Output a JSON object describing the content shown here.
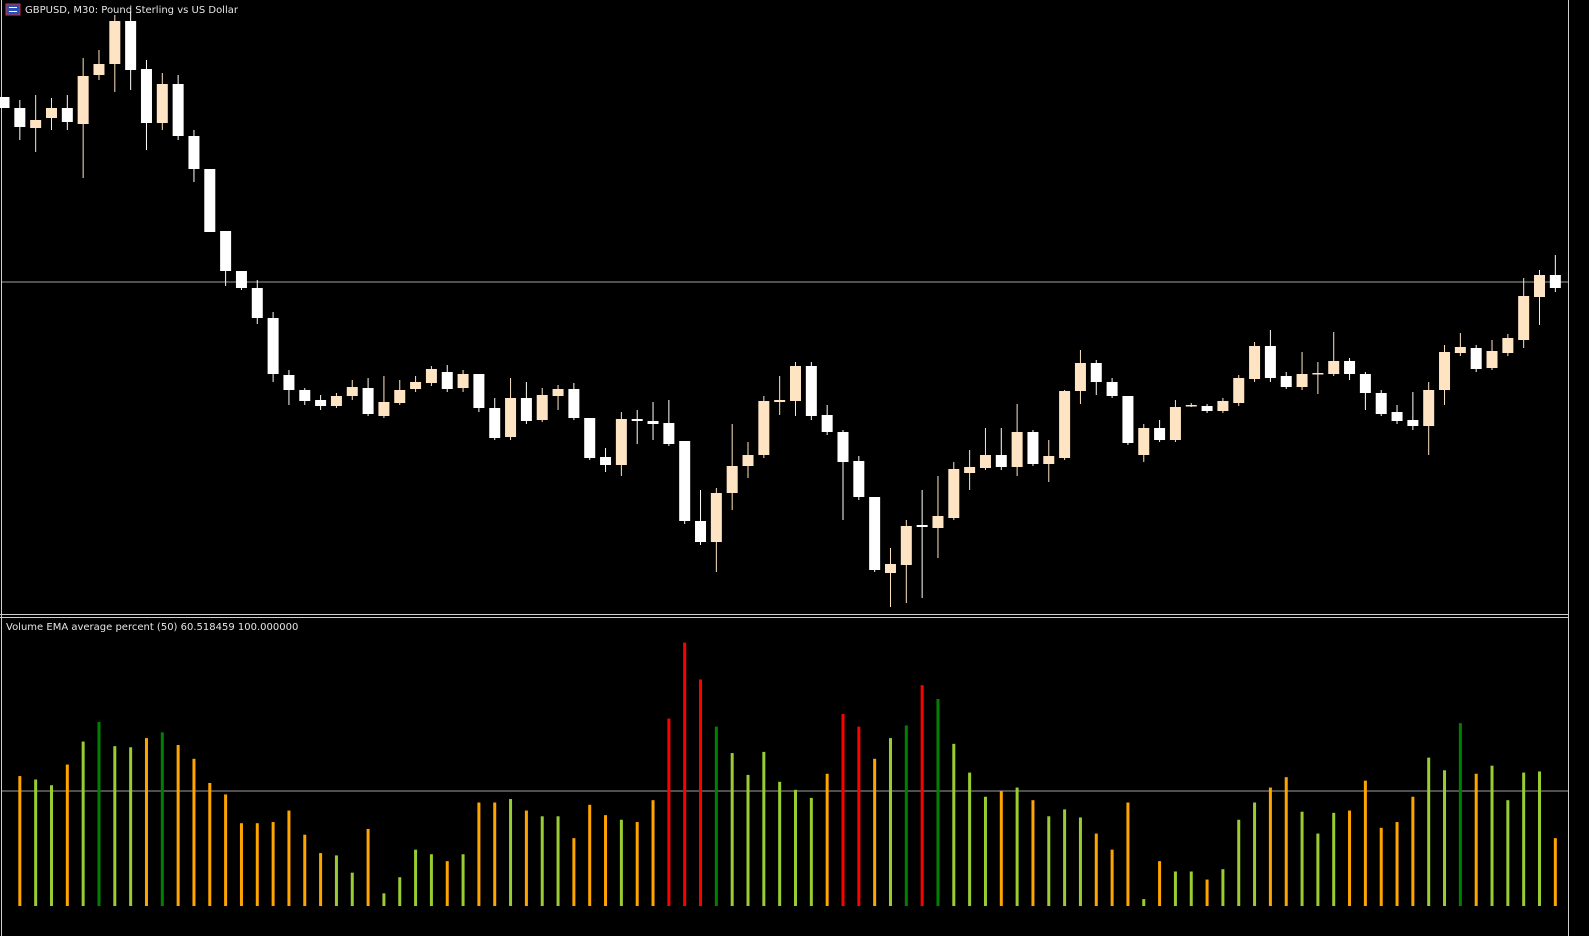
{
  "chart_data": [
    {
      "type": "candlestick",
      "title": "GBPUSD, M30:  Pound Sterling vs US Dollar",
      "up_color": "#ffe4c4",
      "down_color": "#ffffff",
      "ylim": [
        0,
        615
      ],
      "level": 333,
      "open": [
        518,
        507,
        487,
        497,
        507,
        491,
        540,
        551,
        594,
        546,
        492,
        531,
        479,
        446,
        384,
        344,
        327,
        297,
        240,
        225,
        215,
        209,
        219,
        227,
        199,
        212,
        226,
        232,
        243,
        227,
        241,
        207,
        178,
        217,
        195,
        219,
        226,
        197,
        158,
        150,
        196,
        194,
        192,
        174,
        94,
        73,
        122,
        149,
        160,
        213,
        214,
        249,
        200,
        183,
        154,
        118,
        42,
        50,
        90,
        87,
        97,
        142,
        147,
        160,
        148,
        183,
        151,
        157,
        224,
        252,
        233,
        219,
        160,
        187,
        175,
        210,
        209,
        204,
        212,
        236,
        269,
        239,
        228,
        241,
        241,
        254,
        241,
        222,
        203,
        195,
        189,
        225,
        262,
        267,
        247,
        262,
        275,
        318,
        340
      ],
      "high": [
        518,
        515,
        520,
        517,
        520,
        557,
        565,
        600,
        603,
        555,
        542,
        540,
        485,
        446,
        384,
        344,
        335,
        303,
        245,
        227,
        220,
        222,
        235,
        237,
        239,
        235,
        239,
        249,
        250,
        245,
        241,
        217,
        237,
        233,
        227,
        230,
        232,
        197,
        167,
        203,
        205,
        213,
        215,
        174,
        125,
        127,
        191,
        173,
        219,
        239,
        253,
        253,
        210,
        185,
        159,
        118,
        67,
        95,
        125,
        139,
        153,
        165,
        187,
        187,
        211,
        185,
        175,
        225,
        265,
        255,
        237,
        219,
        191,
        195,
        215,
        212,
        211,
        217,
        240,
        273,
        285,
        243,
        263,
        253,
        283,
        257,
        243,
        225,
        210,
        223,
        233,
        270,
        282,
        270,
        275,
        281,
        337,
        345,
        360
      ],
      "low": [
        507,
        475,
        463,
        485,
        485,
        437,
        535,
        523,
        525,
        465,
        485,
        475,
        433,
        383,
        329,
        325,
        291,
        233,
        210,
        210,
        205,
        207,
        215,
        199,
        197,
        210,
        223,
        229,
        223,
        223,
        203,
        175,
        175,
        191,
        193,
        205,
        195,
        155,
        143,
        139,
        171,
        175,
        169,
        91,
        70,
        43,
        105,
        137,
        157,
        200,
        199,
        195,
        180,
        95,
        115,
        43,
        8,
        12,
        17,
        57,
        95,
        125,
        145,
        145,
        139,
        149,
        133,
        155,
        211,
        220,
        217,
        170,
        153,
        173,
        173,
        208,
        202,
        202,
        209,
        233,
        233,
        226,
        225,
        221,
        239,
        235,
        205,
        199,
        191,
        185,
        160,
        210,
        259,
        243,
        245,
        259,
        267,
        290,
        323
      ],
      "close": [
        507,
        488,
        495,
        507,
        493,
        539,
        551,
        594,
        545,
        492,
        531,
        479,
        446,
        383,
        344,
        327,
        297,
        241,
        225,
        214,
        209,
        219,
        228,
        201,
        213,
        225,
        233,
        246,
        226,
        241,
        207,
        177,
        217,
        194,
        220,
        226,
        197,
        157,
        150,
        196,
        194,
        191,
        171,
        94,
        73,
        122,
        149,
        160,
        214,
        215,
        249,
        199,
        183,
        153,
        118,
        45,
        51,
        89,
        88,
        99,
        146,
        148,
        160,
        148,
        183,
        151,
        159,
        224,
        252,
        233,
        219,
        172,
        187,
        175,
        208,
        210,
        204,
        214,
        237,
        269,
        237,
        228,
        241,
        242,
        254,
        241,
        222,
        201,
        194,
        189,
        225,
        263,
        268,
        246,
        264,
        277,
        319,
        340,
        327
      ]
    },
    {
      "type": "bar",
      "title": "Volume EMA average percent (50) 60.518459 100.000000",
      "ylim": [
        0,
        250
      ],
      "level": 100,
      "values": [
        null,
        113,
        110,
        105,
        123,
        143,
        160,
        139,
        138,
        146,
        151,
        140,
        128,
        107,
        97,
        72,
        72,
        73,
        83,
        62,
        46,
        44,
        29,
        67,
        11,
        25,
        49,
        45,
        39,
        45,
        90,
        90,
        93,
        83,
        78,
        78,
        59,
        88,
        79,
        75,
        73,
        92,
        163,
        229,
        197,
        156,
        133,
        114,
        134,
        108,
        101,
        94,
        115,
        167,
        156,
        128,
        146,
        157,
        192,
        180,
        141,
        116,
        95,
        100,
        103,
        92,
        78,
        84,
        77,
        63,
        49,
        90,
        6,
        39,
        30,
        30,
        23,
        32,
        75,
        90,
        103,
        112,
        82,
        63,
        81,
        83,
        109,
        68,
        73,
        95,
        129,
        118,
        159,
        115,
        122,
        92,
        116,
        117,
        59
      ],
      "colors": [
        null,
        "#ffa500",
        "#9acd32",
        "#9acd32",
        "#ffa500",
        "#9acd32",
        "#008000",
        "#9acd32",
        "#9acd32",
        "#ffa500",
        "#008000",
        "#ffa500",
        "#ffa500",
        "#ffa500",
        "#ffa500",
        "#ffa500",
        "#ffa500",
        "#ffa500",
        "#ffa500",
        "#ffa500",
        "#ffa500",
        "#9acd32",
        "#9acd32",
        "#ffa500",
        "#9acd32",
        "#9acd32",
        "#9acd32",
        "#9acd32",
        "#ffa500",
        "#9acd32",
        "#ffa500",
        "#ffa500",
        "#9acd32",
        "#ffa500",
        "#9acd32",
        "#9acd32",
        "#ffa500",
        "#ffa500",
        "#ffa500",
        "#9acd32",
        "#ffa500",
        "#ffa500",
        "#ff0000",
        "#ff0000",
        "#ff0000",
        "#008000",
        "#9acd32",
        "#9acd32",
        "#9acd32",
        "#9acd32",
        "#9acd32",
        "#9acd32",
        "#ffa500",
        "#ff0000",
        "#ff0000",
        "#ffa500",
        "#9acd32",
        "#008000",
        "#ff0000",
        "#008000",
        "#9acd32",
        "#9acd32",
        "#9acd32",
        "#ffa500",
        "#9acd32",
        "#ffa500",
        "#9acd32",
        "#9acd32",
        "#9acd32",
        "#ffa500",
        "#ffa500",
        "#ffa500",
        "#9acd32",
        "#ffa500",
        "#9acd32",
        "#9acd32",
        "#ffa500",
        "#9acd32",
        "#9acd32",
        "#9acd32",
        "#ffa500",
        "#ffa500",
        "#9acd32",
        "#9acd32",
        "#9acd32",
        "#ffa500",
        "#ffa500",
        "#ffa500",
        "#ffa500",
        "#ffa500",
        "#9acd32",
        "#9acd32",
        "#008000",
        "#ffa500",
        "#9acd32",
        "#9acd32",
        "#9acd32",
        "#9acd32",
        "#ffa500"
      ]
    }
  ]
}
